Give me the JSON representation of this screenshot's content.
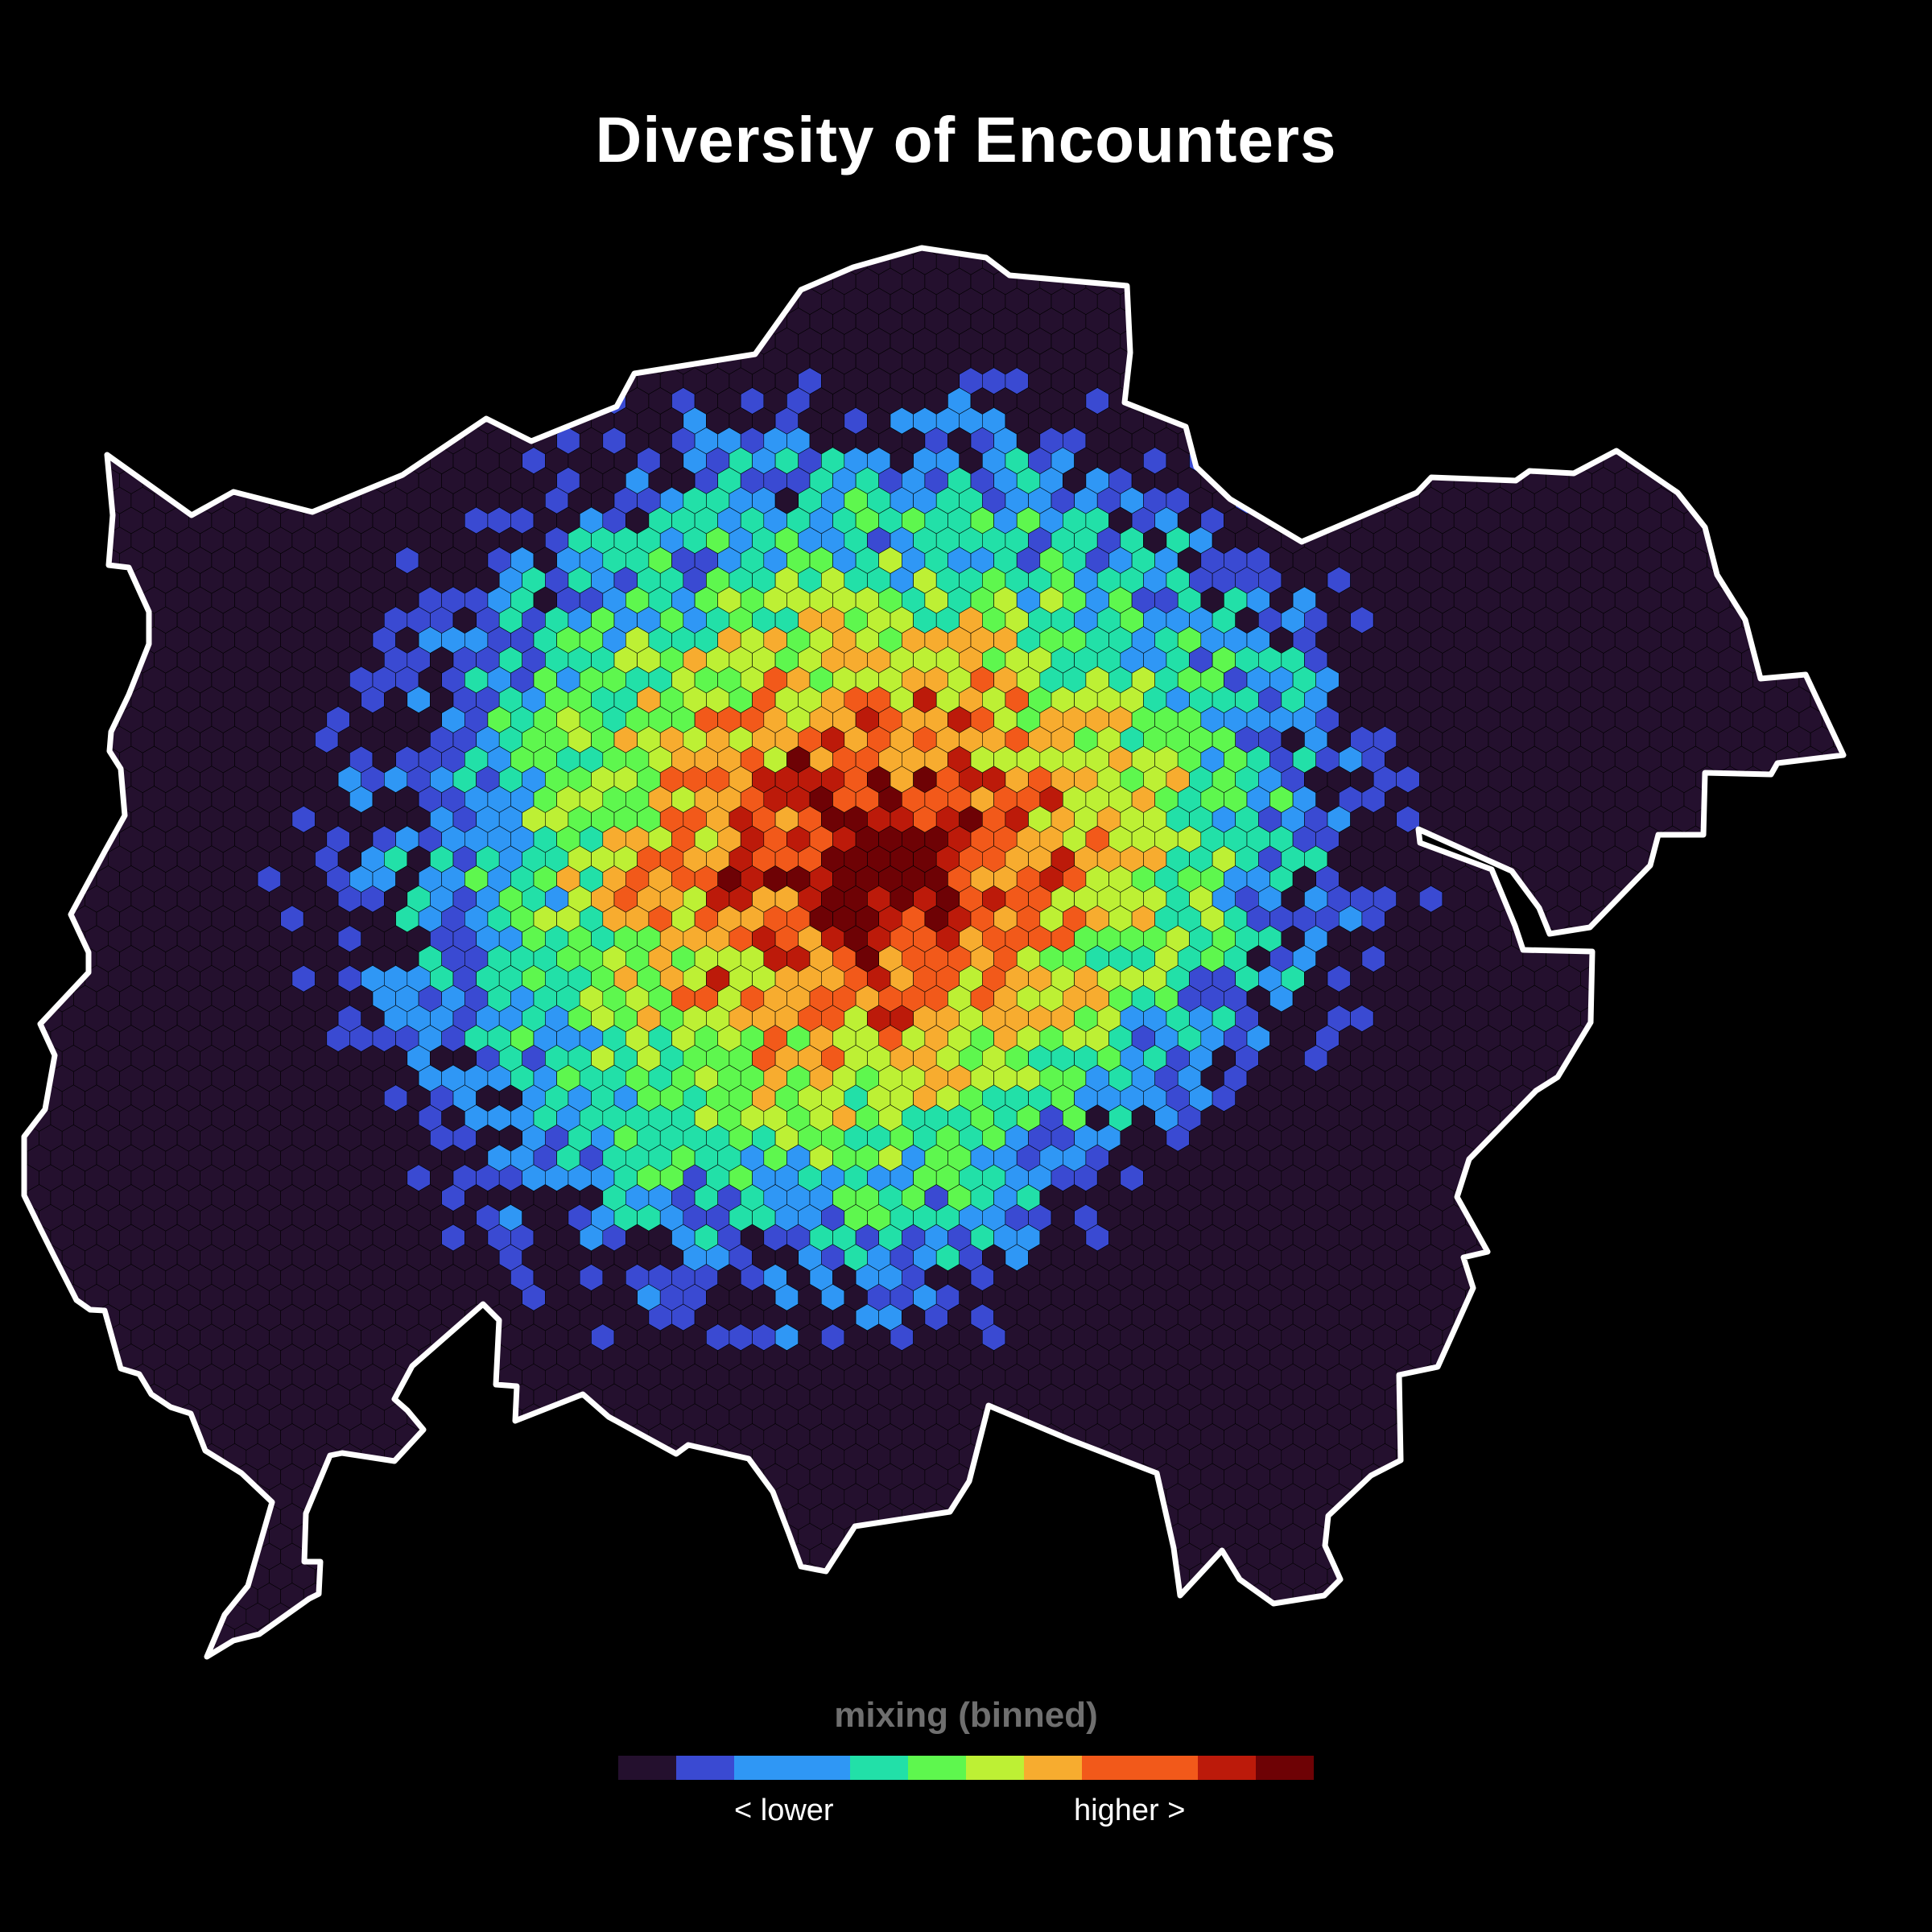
{
  "title": "Diversity of Encounters",
  "legend": {
    "title": "mixing (binned)",
    "low_label": "< lower",
    "high_label": "higher >",
    "bins": [
      {
        "color": "#24102e",
        "weight": 1
      },
      {
        "color": "#3a4ad2",
        "weight": 1
      },
      {
        "color": "#2f97f5",
        "weight": 2
      },
      {
        "color": "#22e0a8",
        "weight": 1
      },
      {
        "color": "#5ef74e",
        "weight": 1
      },
      {
        "color": "#bdf034",
        "weight": 1
      },
      {
        "color": "#f7ac2f",
        "weight": 1
      },
      {
        "color": "#f2591a",
        "weight": 2
      },
      {
        "color": "#bc1a0a",
        "weight": 1
      },
      {
        "color": "#6e0205",
        "weight": 1
      }
    ]
  },
  "map": {
    "boundary_color": "#ffffff",
    "background": "#000000"
  }
}
